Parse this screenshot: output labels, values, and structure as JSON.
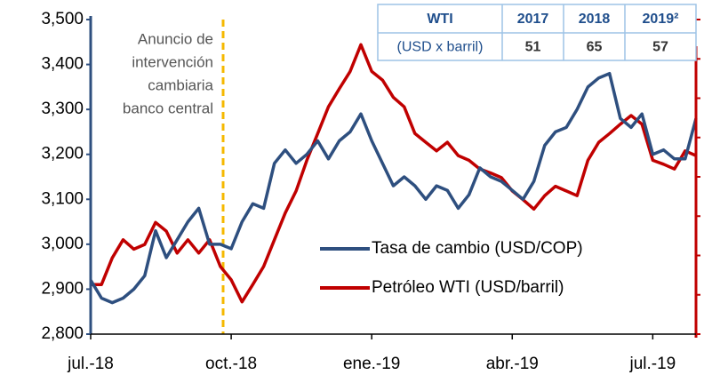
{
  "chart_data": {
    "type": "line",
    "categories": [
      "jul.-18",
      null,
      null,
      null,
      null,
      null,
      null,
      null,
      null,
      null,
      null,
      null,
      null,
      "oct.-18",
      null,
      null,
      null,
      null,
      null,
      null,
      null,
      null,
      null,
      null,
      null,
      null,
      "ene.-19",
      null,
      null,
      null,
      null,
      null,
      null,
      null,
      null,
      null,
      null,
      null,
      null,
      "abr.-19",
      null,
      null,
      null,
      null,
      null,
      null,
      null,
      null,
      null,
      null,
      null,
      null,
      "jul.-19",
      null,
      null,
      null,
      null
    ],
    "series": [
      {
        "name": "Tasa de cambio (USD/COP)",
        "color": "#2e4f7f",
        "axis": "y",
        "values": [
          2920,
          2880,
          2870,
          2880,
          2900,
          2930,
          3030,
          2970,
          3010,
          3050,
          3080,
          3000,
          3000,
          2990,
          3050,
          3090,
          3080,
          3180,
          3210,
          3180,
          3200,
          3230,
          3190,
          3230,
          3250,
          3290,
          3230,
          3180,
          3130,
          3150,
          3130,
          3100,
          3130,
          3120,
          3080,
          3110,
          3170,
          3150,
          3140,
          3120,
          3100,
          3140,
          3220,
          3250,
          3260,
          3300,
          3350,
          3370,
          3380,
          3280,
          3260,
          3290,
          3200,
          3210,
          3190,
          3190,
          3280
        ]
      },
      {
        "name": "Petróleo WTI (USD/barril)",
        "color": "#c00000",
        "axis": "y2",
        "values": [
          46.3,
          46.3,
          49.7,
          52,
          50.8,
          51.4,
          54.2,
          53.1,
          50.3,
          52,
          50.3,
          52,
          48.6,
          46.9,
          44.1,
          46.3,
          48.6,
          52,
          55.4,
          58.2,
          62.1,
          65.5,
          68.9,
          71.2,
          73.4,
          76.8,
          73.4,
          72.3,
          70.1,
          68.9,
          65.5,
          64.4,
          63.3,
          64.4,
          62.7,
          62.1,
          61,
          60.5,
          59.9,
          58.2,
          57.1,
          55.9,
          57.6,
          58.8,
          58.2,
          57.6,
          62.1,
          64.4,
          65.5,
          66.7,
          67.8,
          66.7,
          62.1,
          61.6,
          61,
          63.3,
          62.7
        ]
      }
    ],
    "ylim": [
      2800,
      3500
    ],
    "yticks": [
      {
        "value": 2800,
        "label": "2,800"
      },
      {
        "value": 2900,
        "label": "2,900"
      },
      {
        "value": 3000,
        "label": "3,000"
      },
      {
        "value": 3100,
        "label": "3,100"
      },
      {
        "value": 3200,
        "label": "3,200"
      },
      {
        "value": 3300,
        "label": "3,300"
      },
      {
        "value": 3400,
        "label": "3,400"
      },
      {
        "value": 3500,
        "label": "3,500"
      }
    ],
    "y2lim": [
      40,
      80
    ],
    "y2ticks": [
      40,
      45,
      50,
      55,
      60,
      65,
      70,
      75,
      80
    ],
    "annotation": [
      "Anuncio de",
      "intervención",
      "cambiaria",
      "banco central"
    ],
    "table": {
      "header": [
        "WTI",
        "2017",
        "2018",
        "2019²"
      ],
      "row": [
        "(USD x barril)",
        51,
        65,
        57
      ]
    },
    "legend": "lower-right"
  }
}
